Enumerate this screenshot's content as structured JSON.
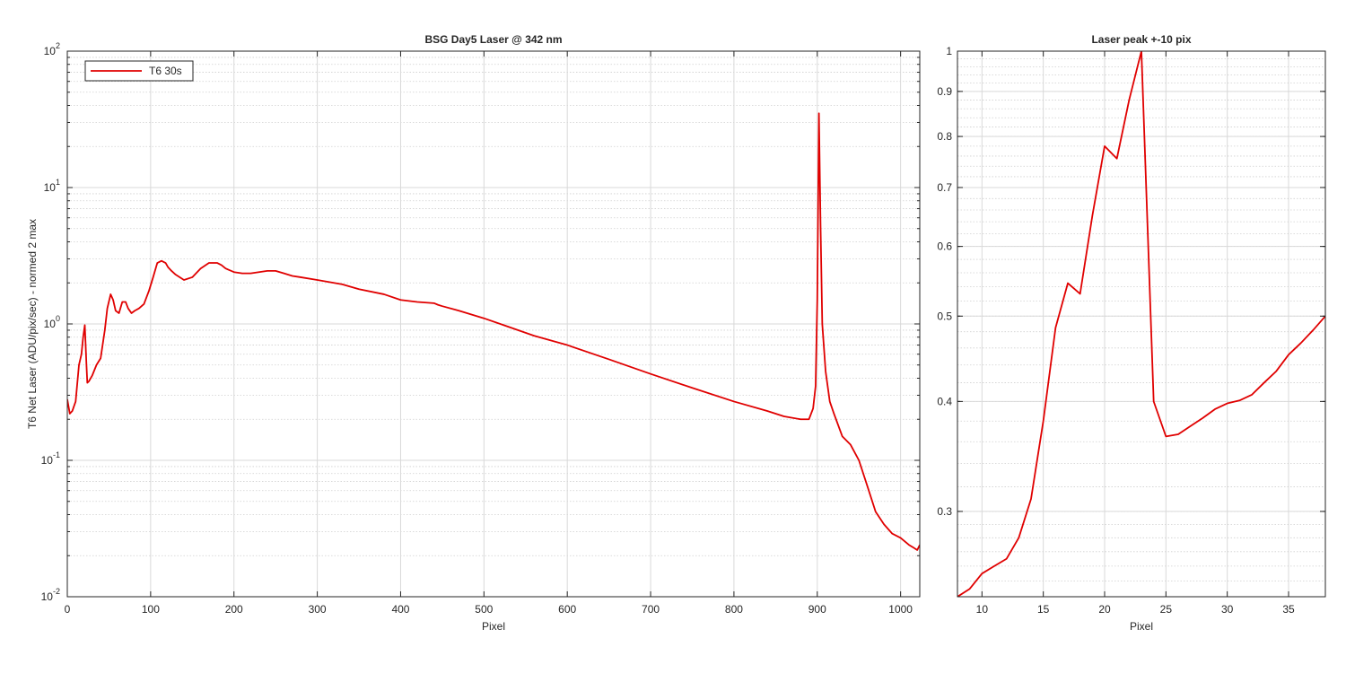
{
  "chart_data": [
    {
      "type": "line",
      "title": "BSG  Day5 Laser @ 342 nm",
      "xlabel": "Pixel",
      "ylabel": "T6 Net Laser (ADU/pix/sec) - normed 2 max",
      "xlim": [
        0,
        1023
      ],
      "ylim": [
        0.01,
        100
      ],
      "yscale": "log",
      "xticks": [
        0,
        100,
        200,
        300,
        400,
        500,
        600,
        700,
        800,
        900,
        1000
      ],
      "yticks": [
        {
          "value": 0.01,
          "base": "10",
          "exp": "-2"
        },
        {
          "value": 0.1,
          "base": "10",
          "exp": "-1"
        },
        {
          "value": 1,
          "base": "10",
          "exp": "0"
        },
        {
          "value": 10,
          "base": "10",
          "exp": "1"
        },
        {
          "value": 100,
          "base": "10",
          "exp": "2"
        }
      ],
      "grid": true,
      "legend": {
        "position": "top-left",
        "entries": [
          "T6 30s"
        ]
      },
      "series": [
        {
          "name": "T6 30s",
          "color": "#e00000",
          "x": [
            0,
            3,
            6,
            10,
            14,
            17,
            19,
            21,
            23,
            24,
            26,
            30,
            35,
            40,
            45,
            48,
            52,
            55,
            58,
            62,
            66,
            70,
            73,
            77,
            81,
            86,
            92,
            98,
            103,
            108,
            113,
            118,
            121,
            125,
            130,
            140,
            150,
            160,
            170,
            180,
            185,
            190,
            200,
            210,
            220,
            230,
            240,
            250,
            260,
            270,
            280,
            300,
            330,
            350,
            380,
            400,
            420,
            440,
            445,
            450,
            470,
            500,
            530,
            560,
            600,
            650,
            700,
            750,
            800,
            840,
            860,
            880,
            890,
            895,
            898,
            900,
            902,
            904,
            906,
            910,
            915,
            920,
            930,
            940,
            950,
            960,
            970,
            980,
            990,
            1000,
            1010,
            1015,
            1020,
            1023
          ],
          "y": [
            0.28,
            0.22,
            0.23,
            0.27,
            0.5,
            0.6,
            0.8,
            0.98,
            0.5,
            0.37,
            0.38,
            0.42,
            0.5,
            0.56,
            0.9,
            1.3,
            1.65,
            1.5,
            1.25,
            1.2,
            1.45,
            1.45,
            1.3,
            1.2,
            1.25,
            1.3,
            1.4,
            1.75,
            2.2,
            2.8,
            2.9,
            2.8,
            2.6,
            2.45,
            2.3,
            2.1,
            2.2,
            2.55,
            2.8,
            2.8,
            2.7,
            2.55,
            2.4,
            2.35,
            2.35,
            2.4,
            2.45,
            2.45,
            2.35,
            2.25,
            2.2,
            2.1,
            1.95,
            1.8,
            1.65,
            1.5,
            1.45,
            1.42,
            1.38,
            1.35,
            1.25,
            1.1,
            0.95,
            0.82,
            0.7,
            0.55,
            0.43,
            0.34,
            0.27,
            0.23,
            0.21,
            0.2,
            0.2,
            0.24,
            0.35,
            1.5,
            35,
            5.0,
            1.0,
            0.45,
            0.27,
            0.22,
            0.15,
            0.13,
            0.1,
            0.065,
            0.042,
            0.034,
            0.029,
            0.027,
            0.024,
            0.023,
            0.022,
            0.024
          ]
        }
      ]
    },
    {
      "type": "line",
      "title": "Laser peak +-10 pix",
      "xlabel": "Pixel",
      "ylabel": "",
      "xlim": [
        8,
        38
      ],
      "ylim": [
        0.24,
        1.0
      ],
      "yscale": "log",
      "xticks": [
        10,
        15,
        20,
        25,
        30,
        35
      ],
      "yticks": [
        0.3,
        0.4,
        0.5,
        0.6,
        0.7,
        0.8,
        0.9,
        1
      ],
      "ytick_labels": [
        "0.3",
        "0.4",
        "0.5",
        "0.6",
        "0.7",
        "0.8",
        "0.9",
        "1"
      ],
      "grid": true,
      "series": [
        {
          "color": "#e00000",
          "x": [
            8,
            9,
            10,
            11,
            12,
            13,
            14,
            15,
            16,
            17,
            18,
            19,
            20,
            21,
            22,
            23,
            24,
            25,
            26,
            27,
            28,
            29,
            30,
            31,
            32,
            33,
            34,
            35,
            36,
            37,
            38
          ],
          "y": [
            0.24,
            0.245,
            0.255,
            0.26,
            0.265,
            0.28,
            0.31,
            0.38,
            0.485,
            0.545,
            0.53,
            0.65,
            0.78,
            0.755,
            0.88,
            1.0,
            0.4,
            0.365,
            0.367,
            0.375,
            0.383,
            0.392,
            0.398,
            0.401,
            0.407,
            0.42,
            0.433,
            0.452,
            0.466,
            0.482,
            0.5
          ]
        }
      ]
    }
  ]
}
